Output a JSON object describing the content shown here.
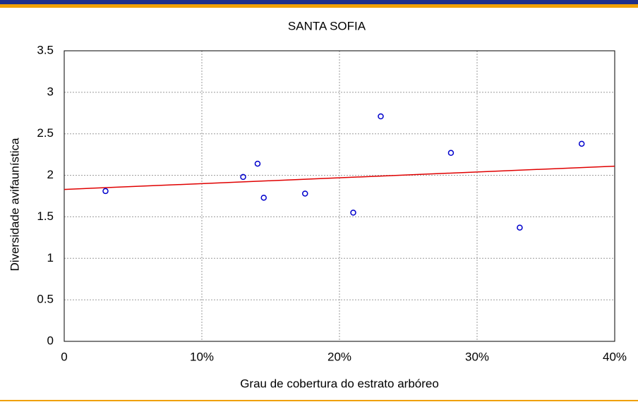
{
  "chart_data": {
    "type": "scatter",
    "title": "SANTA SOFIA",
    "x_label": "Grau de cobertura do estrato arbóreo",
    "y_label": "Diversidade avifaunística",
    "points": {
      "color": "#0000cc",
      "x": [
        3.0,
        13.0,
        14.05,
        14.5,
        17.5,
        21.0,
        23.0,
        28.1,
        33.1,
        37.6
      ],
      "values": [
        1.81,
        1.98,
        2.14,
        1.73,
        1.78,
        1.55,
        2.71,
        2.27,
        1.37,
        2.38
      ]
    },
    "fit_line": {
      "color": "#e00000",
      "x": [
        0,
        40
      ],
      "values": [
        1.83,
        2.11
      ]
    },
    "xlim": [
      0,
      40
    ],
    "xticks": [
      0,
      {
        "value": 10,
        "label": "10%"
      },
      {
        "value": 20,
        "label": "20%"
      },
      {
        "value": 30,
        "label": "30%"
      },
      {
        "value": 40,
        "label": "40%"
      }
    ],
    "ylim": [
      0,
      3.5
    ],
    "yticks": [
      0,
      0.5,
      1,
      1.5,
      2,
      2.5,
      3,
      3.5
    ],
    "grid": true
  }
}
